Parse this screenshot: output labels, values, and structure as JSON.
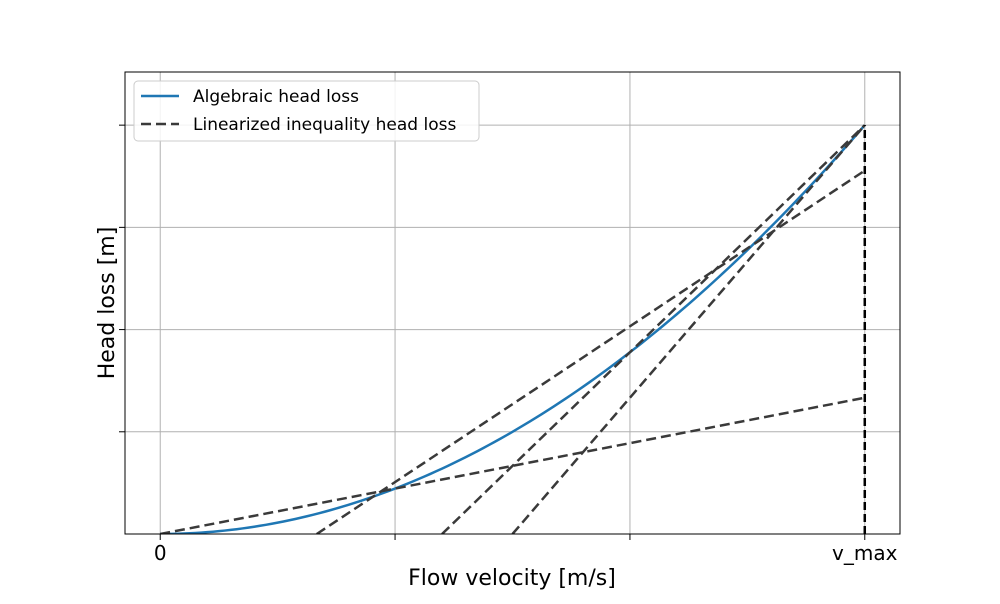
{
  "chart_data": {
    "type": "line",
    "xlabel": "Flow velocity [m/s]",
    "ylabel": "Head loss [m]",
    "xlim": [
      -0.05,
      1.05
    ],
    "ylim": [
      0,
      1.13
    ],
    "x_ticks": [
      {
        "value": 0,
        "label": "0"
      },
      {
        "value": 0.3333,
        "label": ""
      },
      {
        "value": 0.6667,
        "label": ""
      },
      {
        "value": 1,
        "label": "v_max"
      }
    ],
    "y_ticks": [
      0.25,
      0.5,
      0.75,
      1.0
    ],
    "grid": true,
    "legend": {
      "position": "upper-left",
      "entries": [
        {
          "label": "Algebraic head loss",
          "color": "#1f77b4",
          "style": "solid"
        },
        {
          "label": "Linearized inequality head loss",
          "color": "#3a3a3a",
          "style": "dashed"
        }
      ]
    },
    "series": [
      {
        "name": "Algebraic head loss",
        "color": "#1f77b4",
        "style": "solid",
        "function": "x^2",
        "x_range": [
          0,
          1
        ]
      },
      {
        "name": "Linearized inequality head loss",
        "color": "#3a3a3a",
        "style": "dashed",
        "lines": [
          {
            "x": [
              0,
              1
            ],
            "y": [
              0,
              0.3333
            ]
          },
          {
            "x": [
              0.2222,
              1
            ],
            "y": [
              0,
              0.8889
            ]
          },
          {
            "x": [
              0.4,
              1
            ],
            "y": [
              0,
              1.0
            ]
          },
          {
            "x": [
              0.5,
              1
            ],
            "y": [
              0,
              1.0
            ]
          }
        ]
      },
      {
        "name": "v_max bound",
        "color": "#000000",
        "style": "dashed",
        "x": [
          1,
          1
        ],
        "y": [
          0,
          1.0
        ]
      }
    ]
  }
}
